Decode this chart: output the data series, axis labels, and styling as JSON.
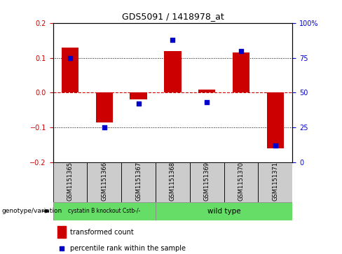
{
  "title": "GDS5091 / 1418978_at",
  "samples": [
    "GSM1151365",
    "GSM1151366",
    "GSM1151367",
    "GSM1151368",
    "GSM1151369",
    "GSM1151370",
    "GSM1151371"
  ],
  "bar_values": [
    0.13,
    -0.085,
    -0.02,
    0.12,
    0.01,
    0.115,
    -0.16
  ],
  "percentile_values": [
    75,
    25,
    42,
    88,
    43,
    80,
    12
  ],
  "ylim_left": [
    -0.2,
    0.2
  ],
  "ylim_right": [
    0,
    100
  ],
  "yticks_left": [
    -0.2,
    -0.1,
    0.0,
    0.1,
    0.2
  ],
  "yticks_right": [
    0,
    25,
    50,
    75,
    100
  ],
  "ytick_labels_right": [
    "0",
    "25",
    "50",
    "75",
    "100%"
  ],
  "bar_color": "#cc0000",
  "dot_color": "#0000cc",
  "zero_line_color": "#cc0000",
  "grid_line_color": "#000000",
  "background_color": "#ffffff",
  "genotype_label": "genotype/variation",
  "group1_label": "cystatin B knockout Cstb-/-",
  "group2_label": "wild type",
  "legend_bar_label": "transformed count",
  "legend_dot_label": "percentile rank within the sample",
  "bar_width": 0.5,
  "sample_box_color": "#cccccc",
  "green_color": "#66dd66",
  "title_fontsize": 9,
  "tick_fontsize": 7,
  "sample_fontsize": 6,
  "legend_fontsize": 7
}
